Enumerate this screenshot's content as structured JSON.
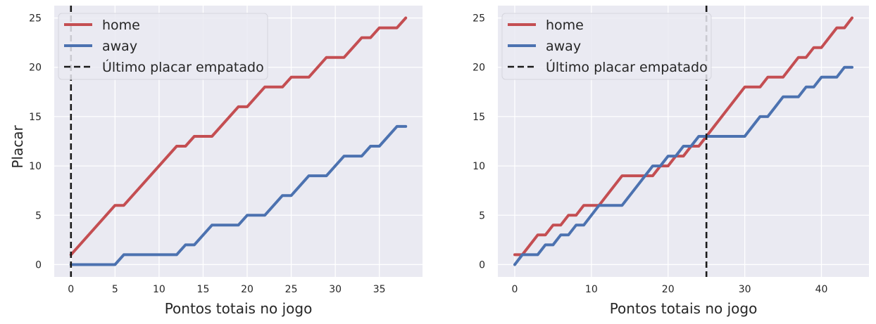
{
  "chart_data": [
    {
      "type": "line",
      "title": "",
      "xlabel": "Pontos totais no jogo",
      "ylabel": "Placar",
      "xlim": [
        -1.9,
        39.9
      ],
      "ylim": [
        -1.25,
        26.25
      ],
      "xticks": [
        0,
        5,
        10,
        15,
        20,
        25,
        30,
        35
      ],
      "yticks": [
        0,
        5,
        10,
        15,
        20,
        25
      ],
      "grid": true,
      "legend_position": "upper left",
      "tie_line_x": 0,
      "series": [
        {
          "name": "home",
          "color": "#c44e52",
          "x": [
            0,
            5,
            6,
            12,
            13,
            14,
            16,
            19,
            20,
            22,
            24,
            25,
            27,
            29,
            31,
            33,
            34,
            35,
            37,
            38
          ],
          "y": [
            1,
            6,
            6,
            12,
            12,
            13,
            13,
            16,
            16,
            18,
            18,
            19,
            19,
            21,
            21,
            23,
            23,
            24,
            24,
            25
          ]
        },
        {
          "name": "away",
          "color": "#4c72b0",
          "x": [
            0,
            5,
            6,
            12,
            13,
            14,
            16,
            19,
            20,
            22,
            24,
            25,
            27,
            29,
            31,
            33,
            34,
            35,
            37,
            38
          ],
          "y": [
            0,
            0,
            1,
            1,
            2,
            2,
            4,
            4,
            5,
            5,
            7,
            7,
            9,
            9,
            11,
            11,
            12,
            12,
            14,
            14
          ]
        }
      ],
      "legend": [
        {
          "label": "home",
          "color": "#c44e52",
          "style": "solid"
        },
        {
          "label": "away",
          "color": "#4c72b0",
          "style": "solid"
        },
        {
          "label": "Último placar empatado",
          "color": "#1a1a1a",
          "style": "dashed"
        }
      ]
    },
    {
      "type": "line",
      "title": "",
      "xlabel": "Pontos totais no jogo",
      "ylabel": "",
      "xlim": [
        -2.2,
        46.2
      ],
      "ylim": [
        -1.25,
        26.25
      ],
      "xticks": [
        0,
        10,
        20,
        30,
        40
      ],
      "yticks": [
        0,
        5,
        10,
        15,
        20,
        25
      ],
      "grid": true,
      "legend_position": "upper left",
      "tie_line_x": 25,
      "series": [
        {
          "name": "home",
          "color": "#c44e52",
          "x": [
            0,
            1,
            3,
            4,
            5,
            6,
            7,
            8,
            9,
            10,
            11,
            14,
            15,
            16,
            17,
            18,
            19,
            20,
            21,
            22,
            23,
            24,
            25,
            30,
            31,
            32,
            33,
            34,
            35,
            37,
            38,
            39,
            40,
            42,
            43,
            44
          ],
          "y": [
            1,
            1,
            3,
            3,
            4,
            4,
            5,
            5,
            6,
            6,
            6,
            9,
            9,
            9,
            9,
            9,
            10,
            10,
            11,
            11,
            12,
            12,
            13,
            18,
            18,
            18,
            19,
            19,
            19,
            21,
            21,
            22,
            22,
            24,
            24,
            25
          ]
        },
        {
          "name": "away",
          "color": "#4c72b0",
          "x": [
            0,
            1,
            3,
            4,
            5,
            6,
            7,
            8,
            9,
            10,
            11,
            14,
            15,
            16,
            17,
            18,
            19,
            20,
            21,
            22,
            23,
            24,
            25,
            30,
            31,
            32,
            33,
            34,
            35,
            37,
            38,
            39,
            40,
            42,
            43,
            44
          ],
          "y": [
            0,
            1,
            1,
            2,
            2,
            3,
            3,
            4,
            4,
            5,
            6,
            6,
            7,
            8,
            9,
            10,
            10,
            11,
            11,
            12,
            12,
            13,
            13,
            13,
            14,
            15,
            15,
            16,
            17,
            17,
            18,
            18,
            19,
            19,
            20,
            20
          ]
        }
      ],
      "legend": [
        {
          "label": "home",
          "color": "#c44e52",
          "style": "solid"
        },
        {
          "label": "away",
          "color": "#4c72b0",
          "style": "solid"
        },
        {
          "label": "Último placar empatado",
          "color": "#1a1a1a",
          "style": "dashed"
        }
      ]
    }
  ]
}
